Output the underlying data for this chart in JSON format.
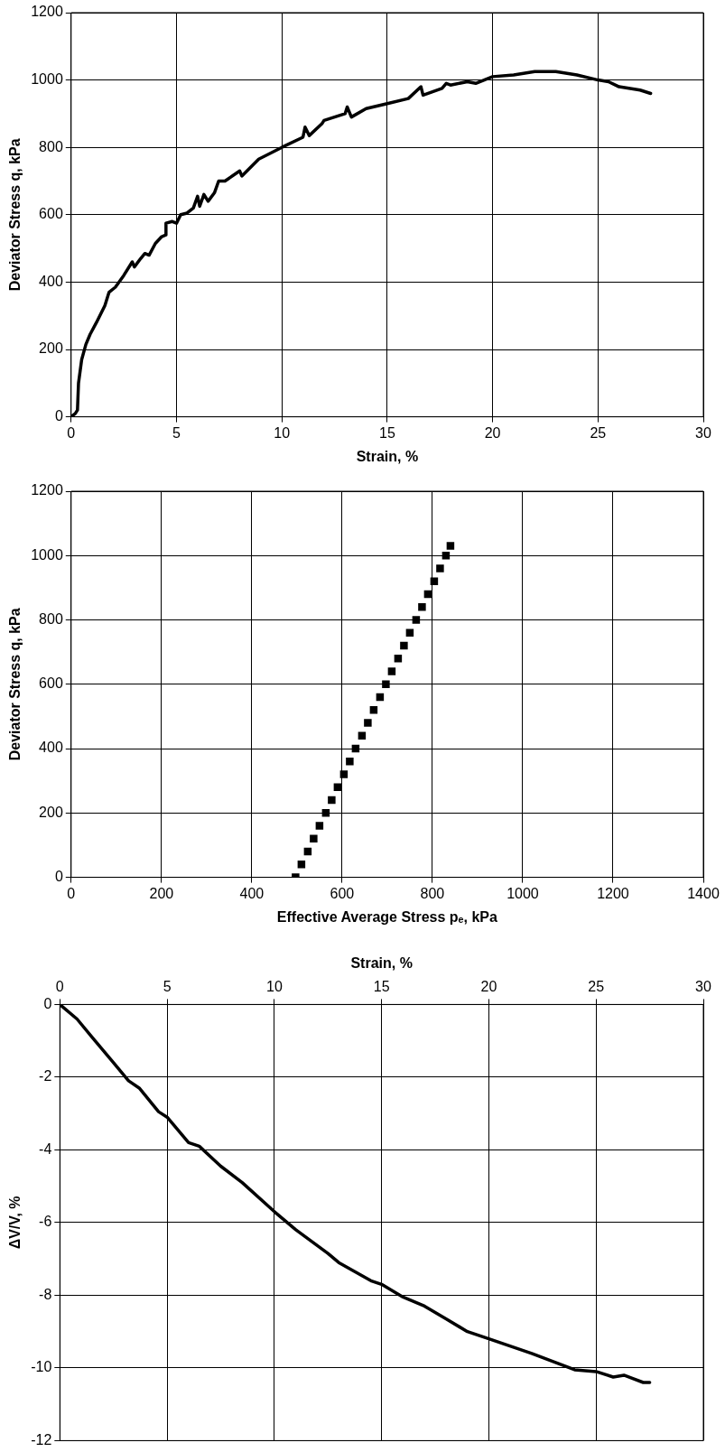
{
  "chart_data": [
    {
      "type": "line",
      "xlabel": "Strain, %",
      "ylabel": "Deviator Stress q, kPa",
      "xlim": [
        0,
        30
      ],
      "xticks": [
        0,
        5,
        10,
        15,
        20,
        25,
        30
      ],
      "ylim": [
        0,
        1200
      ],
      "yticks": [
        0,
        200,
        400,
        600,
        800,
        1000,
        1200
      ],
      "grid": true,
      "legend": false,
      "marker": "none",
      "line_style": "solid",
      "series": [
        {
          "color": "#000000",
          "x": [
            0,
            0.2,
            0.3,
            0.35,
            0.5,
            0.7,
            0.9,
            1.2,
            1.6,
            1.8,
            2.1,
            2.5,
            2.9,
            3.0,
            3.3,
            3.5,
            3.7,
            4.0,
            4.3,
            4.5,
            4.5,
            4.8,
            5.0,
            5.2,
            5.5,
            5.8,
            6.0,
            6.1,
            6.3,
            6.5,
            6.8,
            7.0,
            7.3,
            8.0,
            8.1,
            8.9,
            10,
            11.0,
            11.1,
            11.3,
            11.9,
            12,
            13,
            13.1,
            13.3,
            14,
            15,
            16,
            16.6,
            16.7,
            17.6,
            17.8,
            18,
            18.8,
            19.2,
            20,
            21,
            22,
            23,
            24,
            25,
            25.5,
            26,
            27,
            27.5
          ],
          "values": [
            0,
            10,
            20,
            100,
            170,
            215,
            245,
            280,
            330,
            370,
            385,
            420,
            460,
            445,
            470,
            485,
            480,
            515,
            535,
            540,
            575,
            580,
            575,
            600,
            605,
            620,
            655,
            625,
            660,
            640,
            665,
            700,
            700,
            730,
            715,
            765,
            800,
            830,
            860,
            835,
            870,
            880,
            900,
            920,
            890,
            915,
            930,
            945,
            980,
            955,
            975,
            990,
            985,
            995,
            990,
            1010,
            1015,
            1025,
            1025,
            1015,
            1000,
            995,
            980,
            970,
            960
          ]
        }
      ]
    },
    {
      "type": "scatter",
      "xlabel": "Effective Average Stress pₑ, kPa",
      "ylabel": "Deviator Stress q, kPa",
      "xlim": [
        0,
        1400
      ],
      "xticks": [
        0,
        200,
        400,
        600,
        800,
        1000,
        1200,
        1400
      ],
      "ylim": [
        0,
        1200
      ],
      "yticks": [
        0,
        200,
        400,
        600,
        800,
        1000,
        1200
      ],
      "grid": true,
      "legend": false,
      "marker": "square",
      "series": [
        {
          "color": "#000000",
          "x": [
            497,
            510,
            524,
            537,
            550,
            564,
            577,
            590,
            604,
            617,
            630,
            644,
            657,
            670,
            684,
            697,
            710,
            724,
            737,
            750,
            764,
            777,
            790,
            804,
            817,
            830,
            840
          ],
          "values": [
            0,
            40,
            80,
            120,
            160,
            200,
            240,
            280,
            320,
            360,
            400,
            440,
            480,
            520,
            560,
            600,
            640,
            680,
            720,
            760,
            800,
            840,
            880,
            920,
            960,
            1000,
            1030
          ]
        }
      ]
    },
    {
      "type": "line",
      "xlabel": "Strain, %",
      "ylabel": "ΔV/V, %",
      "xlim": [
        0,
        30
      ],
      "xticks": [
        0,
        5,
        10,
        15,
        20,
        25,
        30
      ],
      "ylim": [
        -12,
        0
      ],
      "yticks": [
        -12,
        -10,
        -8,
        -6,
        -4,
        -2,
        0
      ],
      "grid": true,
      "legend": false,
      "marker": "none",
      "line_style": "solid",
      "series": [
        {
          "color": "#000000",
          "x": [
            0,
            0.8,
            1.5,
            2.5,
            3.2,
            3.7,
            4.6,
            5.0,
            6.0,
            6.5,
            7.5,
            8.5,
            10,
            11,
            12.5,
            13,
            14.5,
            15,
            16,
            17,
            18,
            19,
            20,
            22,
            24,
            25,
            25.8,
            26.3,
            27.2,
            27.5
          ],
          "values": [
            0,
            -0.4,
            -0.9,
            -1.6,
            -2.1,
            -2.3,
            -2.95,
            -3.1,
            -3.8,
            -3.9,
            -4.45,
            -4.9,
            -5.7,
            -6.2,
            -6.85,
            -7.1,
            -7.6,
            -7.7,
            -8.05,
            -8.3,
            -8.65,
            -9.0,
            -9.2,
            -9.6,
            -10.05,
            -10.1,
            -10.25,
            -10.2,
            -10.4,
            -10.4
          ]
        }
      ]
    }
  ]
}
